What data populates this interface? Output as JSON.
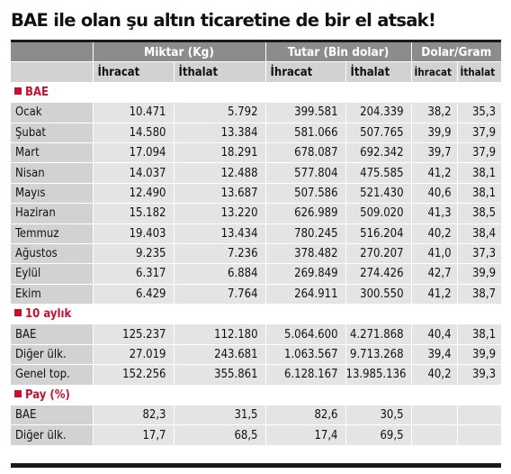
{
  "title": "BAE ile olan şu altın ticaretine de bir el atsak!",
  "headers": {
    "group1": "Miktar (Kg)",
    "group2": "Tutar (Bin dolar)",
    "group3": "Dolar/Gram",
    "ihracat": "İhracat",
    "ithalat": "İthalat"
  },
  "sections": {
    "bae": "BAE",
    "ten_months": "10 aylık",
    "share": "Pay (%)"
  },
  "monthly": [
    {
      "name": "Ocak",
      "m_ihr": "10.471",
      "m_ith": "5.792",
      "t_ihr": "399.581",
      "t_ith": "204.339",
      "d_ihr": "38,2",
      "d_ith": "35,3"
    },
    {
      "name": "Şubat",
      "m_ihr": "14.580",
      "m_ith": "13.384",
      "t_ihr": "581.066",
      "t_ith": "507.765",
      "d_ihr": "39,9",
      "d_ith": "37,9"
    },
    {
      "name": "Mart",
      "m_ihr": "17.094",
      "m_ith": "18.291",
      "t_ihr": "678.087",
      "t_ith": "692.342",
      "d_ihr": "39,7",
      "d_ith": "37,9"
    },
    {
      "name": "Nisan",
      "m_ihr": "14.037",
      "m_ith": "12.488",
      "t_ihr": "577.804",
      "t_ith": "475.585",
      "d_ihr": "41,2",
      "d_ith": "38,1"
    },
    {
      "name": "Mayıs",
      "m_ihr": "12.490",
      "m_ith": "13.687",
      "t_ihr": "507.586",
      "t_ith": "521.430",
      "d_ihr": "40,6",
      "d_ith": "38,1"
    },
    {
      "name": "Haziran",
      "m_ihr": "15.182",
      "m_ith": "13.220",
      "t_ihr": "626.989",
      "t_ith": "509.020",
      "d_ihr": "41,3",
      "d_ith": "38,5"
    },
    {
      "name": "Temmuz",
      "m_ihr": "19.403",
      "m_ith": "13.434",
      "t_ihr": "780.245",
      "t_ith": "516.204",
      "d_ihr": "40,2",
      "d_ith": "38,4"
    },
    {
      "name": "Ağustos",
      "m_ihr": "9.235",
      "m_ith": "7.236",
      "t_ihr": "378.482",
      "t_ith": "270.207",
      "d_ihr": "41,0",
      "d_ith": "37,3"
    },
    {
      "name": "Eylül",
      "m_ihr": "6.317",
      "m_ith": "6.884",
      "t_ihr": "269.849",
      "t_ith": "274.426",
      "d_ihr": "42,7",
      "d_ith": "39,9"
    },
    {
      "name": "Ekim",
      "m_ihr": "6.429",
      "m_ith": "7.764",
      "t_ihr": "264.911",
      "t_ith": "300.550",
      "d_ihr": "41,2",
      "d_ith": "38,7"
    }
  ],
  "totals": [
    {
      "name": "BAE",
      "m_ihr": "125.237",
      "m_ith": "112.180",
      "t_ihr": "5.064.600",
      "t_ith": "4.271.868",
      "d_ihr": "40,4",
      "d_ith": "38,1"
    },
    {
      "name": "Diğer ülk.",
      "m_ihr": "27.019",
      "m_ith": "243.681",
      "t_ihr": "1.063.567",
      "t_ith": "9.713.268",
      "d_ihr": "39,4",
      "d_ith": "39,9"
    },
    {
      "name": "Genel top.",
      "m_ihr": "152.256",
      "m_ith": "355.861",
      "t_ihr": "6.128.167",
      "t_ith": "13.985.136",
      "d_ihr": "40,2",
      "d_ith": "39,3"
    }
  ],
  "shares": [
    {
      "name": "BAE",
      "m_ihr": "82,3",
      "m_ith": "31,5",
      "t_ihr": "82,6",
      "t_ith": "30,5",
      "d_ihr": "",
      "d_ith": ""
    },
    {
      "name": "Diğer ülk.",
      "m_ihr": "17,7",
      "m_ith": "68,5",
      "t_ihr": "17,4",
      "t_ith": "69,5",
      "d_ihr": "",
      "d_ith": ""
    }
  ]
}
